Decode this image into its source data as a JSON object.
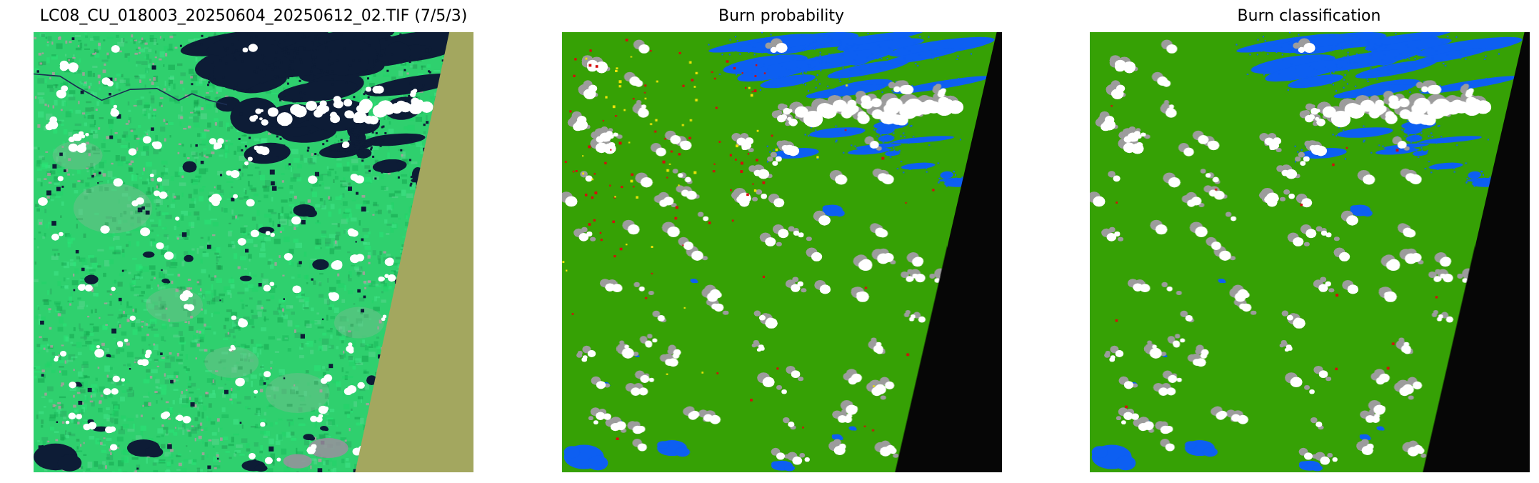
{
  "figure": {
    "background": "#ffffff",
    "panels": [
      {
        "id": "scene",
        "title": "LC08_CU_018003_20250604_20250612_02.TIF (7/5/3)",
        "palette": {
          "base": "#2fd06e",
          "greens": [
            "#27e878",
            "#1fd468",
            "#45e98e",
            "#17b356",
            "#0f9e4a",
            "#62d894",
            "#2aa65f"
          ],
          "dark_green": "#1e8c4b",
          "gray_green": "#8fb49b",
          "pink": "#c493a6",
          "water": "#0d1c36",
          "boundary_line": "#1b2d52",
          "cloud": "#ffffff",
          "gray_patch": "#9a8f9e",
          "nodata": "#a3a75f"
        }
      },
      {
        "id": "probability",
        "title": "Burn probability",
        "palette": {
          "green": "#36a105",
          "water": "#0d5ff2",
          "cloud": "#ffffff",
          "shadow": "#9c9c9c",
          "red": "#d60d0d",
          "yellow": "#efe409",
          "nodata": "#060606"
        }
      },
      {
        "id": "classification",
        "title": "Burn classification",
        "palette": {
          "green": "#36a105",
          "water": "#0d5ff2",
          "cloud": "#ffffff",
          "shadow": "#9c9c9c",
          "red": "#d60d0d",
          "nodata": "#060606"
        }
      }
    ]
  },
  "chart_data": [
    {
      "type": "heatmap",
      "panel": "scene",
      "title": "LC08_CU_018003_20250604_20250612_02.TIF (7/5/3)",
      "band_combination": "7/5/3",
      "colors_present": {
        "vegetation_bright_green": "#2fd06e",
        "water_dark_navy": "#0d1c36",
        "clouds_white": "#ffffff",
        "pink_speckles": "#c493a6",
        "nodata_wedge_tan": "#a3a75f"
      },
      "layout_hints": {
        "axes": "off",
        "nodata_wedge": "right side, diagonal, widening toward bottom"
      }
    },
    {
      "type": "heatmap",
      "panel": "burn_probability",
      "title": "Burn probability",
      "colors_present": {
        "green": "#36a105",
        "blue_water": "#0d5ff2",
        "white_clouds": "#ffffff",
        "gray_cloud_shadows": "#9c9c9c",
        "red_specks": "#d60d0d",
        "yellow_specks": "#efe409",
        "black_nodata": "#060606"
      },
      "layout_hints": {
        "axes": "off",
        "red_yellow_specks": "concentrated upper-left quadrant",
        "nodata_wedge": "right side, diagonal, widening toward bottom"
      }
    },
    {
      "type": "heatmap",
      "panel": "burn_classification",
      "title": "Burn classification",
      "colors_present": {
        "green": "#36a105",
        "blue_water": "#0d5ff2",
        "white_clouds": "#ffffff",
        "gray_cloud_shadows": "#9c9c9c",
        "red_specks": "#d60d0d",
        "black_nodata": "#060606"
      },
      "layout_hints": {
        "axes": "off",
        "red_specks": "very sparse",
        "no_yellow": true,
        "nodata_wedge": "right side, diagonal, widening toward bottom"
      }
    }
  ]
}
